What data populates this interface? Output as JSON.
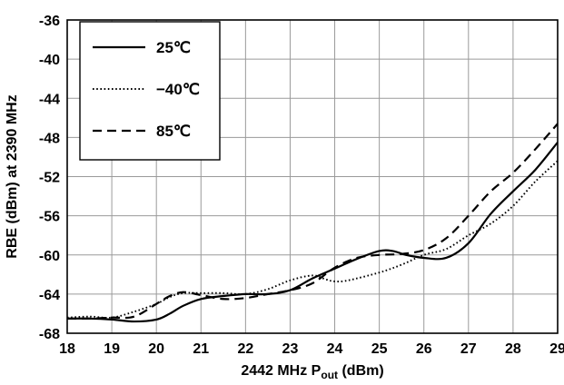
{
  "chart_data": {
    "type": "line",
    "xlabel": {
      "main": "2442 MHz P",
      "sub": "out",
      "suffix": " (dBm)"
    },
    "ylabel": "RBE (dBm) at 2390 MHz",
    "xlim": [
      18,
      29
    ],
    "ylim": [
      -68,
      -36
    ],
    "x_ticks": [
      18,
      19,
      20,
      21,
      22,
      23,
      24,
      25,
      26,
      27,
      28,
      29
    ],
    "y_ticks": [
      -36,
      -40,
      -44,
      -48,
      -52,
      -56,
      -60,
      -64,
      -68
    ],
    "grid": true,
    "legend_position": "top-left",
    "series": [
      {
        "name": "25℃",
        "style": "solid",
        "color": "#000000",
        "points": [
          [
            18,
            -66.5
          ],
          [
            18.5,
            -66.5
          ],
          [
            19,
            -66.6
          ],
          [
            19.5,
            -66.8
          ],
          [
            20,
            -66.6
          ],
          [
            20.3,
            -66.0
          ],
          [
            20.6,
            -65.2
          ],
          [
            21,
            -64.5
          ],
          [
            21.5,
            -64.2
          ],
          [
            22,
            -64.0
          ],
          [
            22.5,
            -64.0
          ],
          [
            23,
            -63.6
          ],
          [
            23.5,
            -62.4
          ],
          [
            24,
            -61.4
          ],
          [
            24.5,
            -60.4
          ],
          [
            25,
            -59.6
          ],
          [
            25.3,
            -59.6
          ],
          [
            25.6,
            -60.0
          ],
          [
            26,
            -60.3
          ],
          [
            26.5,
            -60.3
          ],
          [
            27,
            -58.8
          ],
          [
            27.5,
            -55.8
          ],
          [
            28,
            -53.5
          ],
          [
            28.5,
            -51.3
          ],
          [
            29,
            -48.5
          ]
        ]
      },
      {
        "name": "−40℃",
        "style": "dotted",
        "color": "#000000",
        "points": [
          [
            18,
            -66.4
          ],
          [
            18.5,
            -66.3
          ],
          [
            19,
            -66.4
          ],
          [
            19.5,
            -65.8
          ],
          [
            20,
            -65.0
          ],
          [
            20.3,
            -64.3
          ],
          [
            20.6,
            -63.9
          ],
          [
            21,
            -63.9
          ],
          [
            21.5,
            -63.9
          ],
          [
            22,
            -64.0
          ],
          [
            22.5,
            -63.5
          ],
          [
            23,
            -62.6
          ],
          [
            23.5,
            -62.1
          ],
          [
            23.8,
            -62.5
          ],
          [
            24,
            -62.7
          ],
          [
            24.3,
            -62.6
          ],
          [
            25,
            -61.8
          ],
          [
            25.5,
            -61.0
          ],
          [
            26,
            -60.0
          ],
          [
            26.5,
            -59.4
          ],
          [
            27,
            -58.0
          ],
          [
            27.5,
            -56.8
          ],
          [
            28,
            -55.0
          ],
          [
            28.5,
            -52.5
          ],
          [
            29,
            -50.4
          ]
        ]
      },
      {
        "name": "85℃",
        "style": "dashed",
        "color": "#000000",
        "points": [
          [
            18,
            -66.5
          ],
          [
            18.5,
            -66.5
          ],
          [
            19,
            -66.4
          ],
          [
            19.5,
            -66.3
          ],
          [
            20,
            -65.0
          ],
          [
            20.3,
            -64.2
          ],
          [
            20.6,
            -63.8
          ],
          [
            21,
            -64.1
          ],
          [
            21.5,
            -64.5
          ],
          [
            22,
            -64.4
          ],
          [
            22.5,
            -64.0
          ],
          [
            23,
            -63.6
          ],
          [
            23.5,
            -62.9
          ],
          [
            24,
            -61.3
          ],
          [
            24.5,
            -60.3
          ],
          [
            25,
            -60.0
          ],
          [
            25.5,
            -59.9
          ],
          [
            26,
            -59.5
          ],
          [
            26.5,
            -58.3
          ],
          [
            27,
            -56.0
          ],
          [
            27.5,
            -53.5
          ],
          [
            28,
            -51.6
          ],
          [
            28.5,
            -49.2
          ],
          [
            29,
            -46.6
          ]
        ]
      }
    ]
  }
}
